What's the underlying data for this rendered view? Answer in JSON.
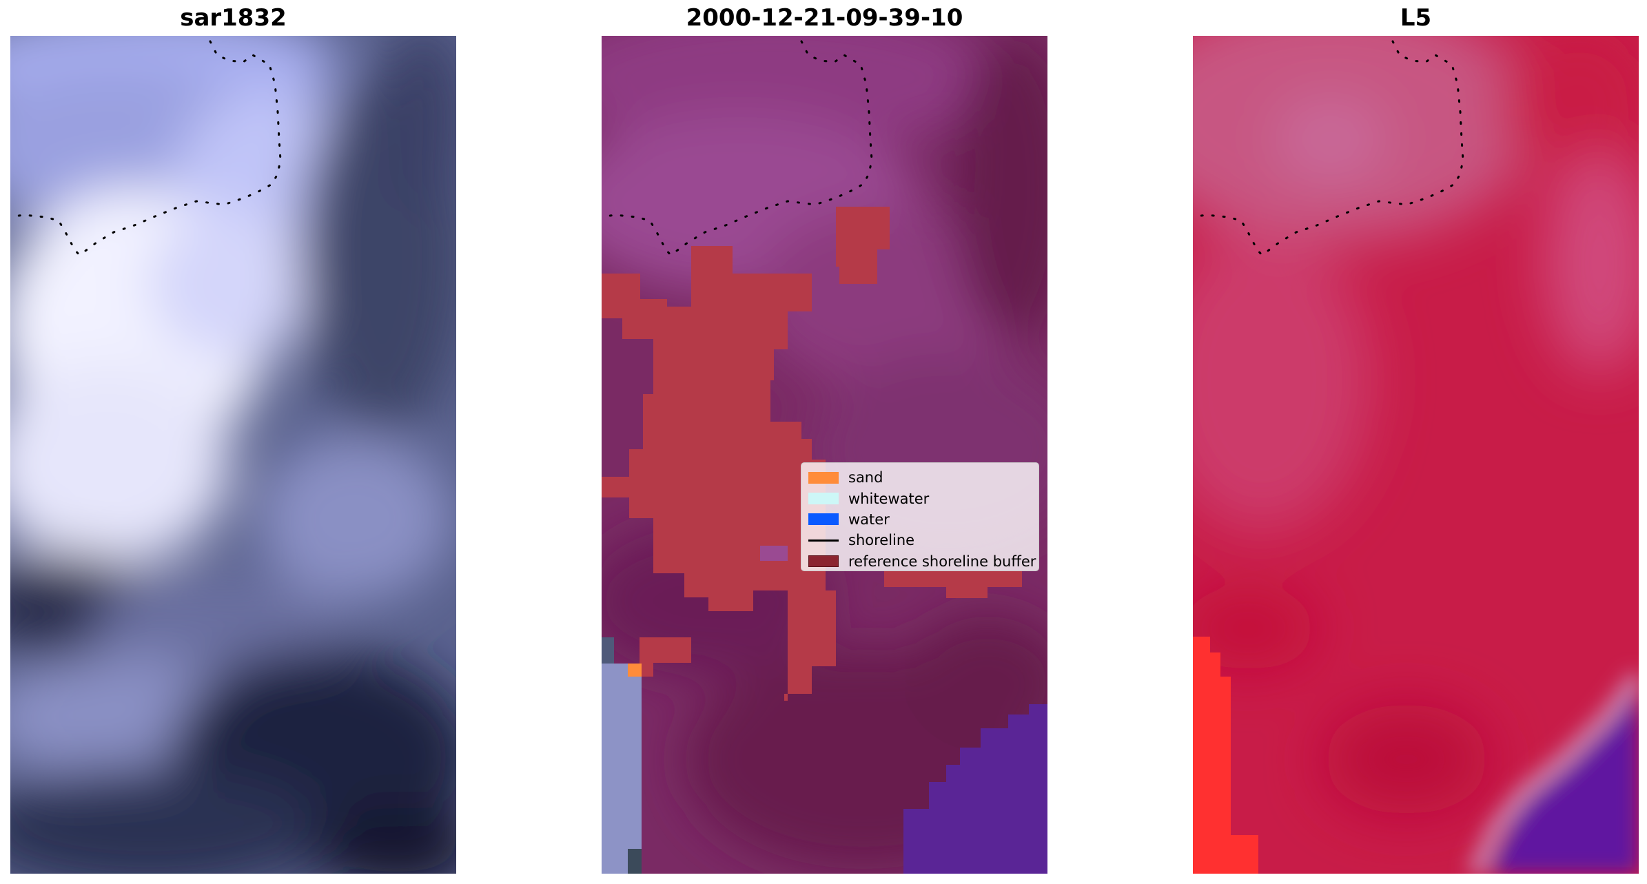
{
  "panels": [
    {
      "title": "sar1832"
    },
    {
      "title": "2000-12-21-09-39-10"
    },
    {
      "title": "L5"
    }
  ],
  "legend": {
    "items": [
      {
        "label": "sand",
        "color": "#ff8c3a",
        "kind": "patch"
      },
      {
        "label": "whitewater",
        "color": "#cdf7f7",
        "kind": "patch"
      },
      {
        "label": "water",
        "color": "#0a5aff",
        "kind": "patch"
      },
      {
        "label": "shoreline",
        "color": "#000000",
        "kind": "line"
      },
      {
        "label": "reference shoreline buffer",
        "color": "#8b2430",
        "kind": "patch"
      }
    ]
  },
  "colors": {
    "buffer": "#b53a48",
    "sar_light": "#eeeeff",
    "sar_dark": "#13182e",
    "class_base": "#7a2660",
    "class_ocean": "#5a2596",
    "l5_base": "#c81c48",
    "l5_beach": "#ff3030"
  }
}
